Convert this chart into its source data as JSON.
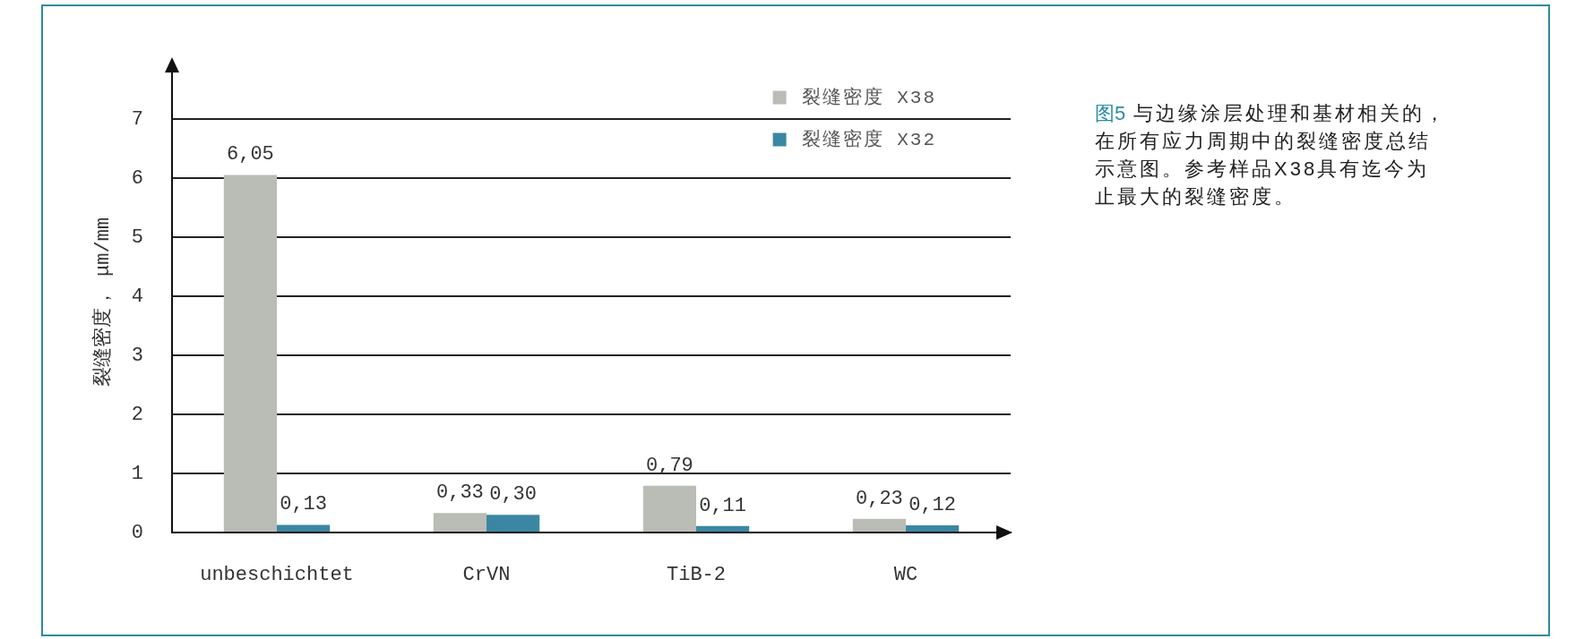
{
  "chart_data": {
    "type": "bar",
    "categories": [
      "unbeschichtet",
      "CrVN",
      "TiB-2",
      "WC"
    ],
    "series": [
      {
        "name": "裂缝密度 X38",
        "color": "#babcb6",
        "values": [
          6.05,
          0.33,
          0.79,
          0.23
        ],
        "value_labels": [
          "6,05",
          "0,33",
          "0,79",
          "0,23"
        ]
      },
      {
        "name": "裂缝密度 X32",
        "color": "#3b87a3",
        "values": [
          0.13,
          0.3,
          0.11,
          0.12
        ],
        "value_labels": [
          "0,13",
          "0,30",
          "0,11",
          "0,12"
        ]
      }
    ],
    "ylabel": "裂缝密度， μm/mm",
    "ylim": [
      0,
      7.8
    ],
    "yticks": [
      0,
      1,
      2,
      3,
      4,
      5,
      6,
      7
    ],
    "grid": "y",
    "legend": "top right",
    "annotations": [
      "图5 与边缘涂层处理和基材相关的，在所有应力周期中的裂缝密度总结示意图。参考样品X38具有迄今为止最大的裂缝密度。"
    ]
  }
}
